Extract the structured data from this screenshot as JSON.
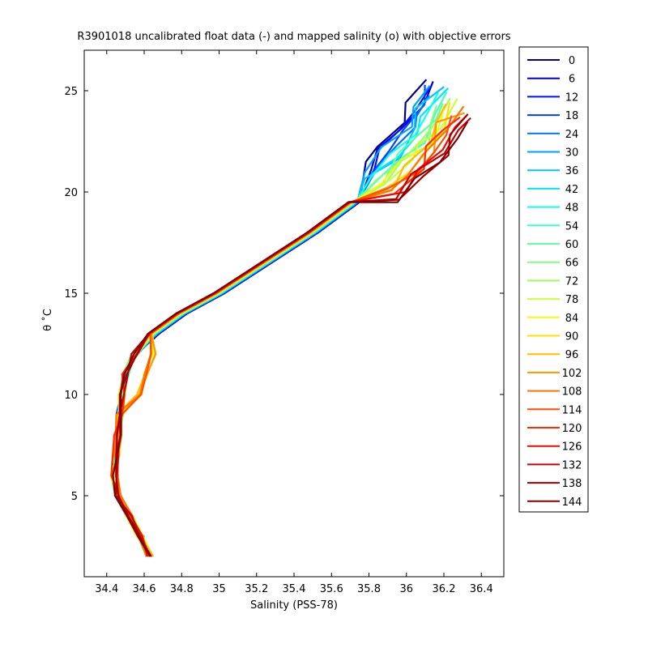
{
  "chart_data": {
    "type": "line",
    "title": "R3901018 uncalibrated float data (-) and mapped salinity (o) with objective errors",
    "xlabel": "Salinity (PSS-78)",
    "ylabel": "θ ˚C",
    "xlim": [
      34.28,
      36.52
    ],
    "ylim": [
      1.0,
      27.0
    ],
    "xticks": [
      "34.4",
      "34.6",
      "34.8",
      "35",
      "35.2",
      "35.4",
      "35.6",
      "35.8",
      "36",
      "36.2",
      "36.4"
    ],
    "xtick_values": [
      34.4,
      34.6,
      34.8,
      35.0,
      35.2,
      35.4,
      35.6,
      35.8,
      36.0,
      36.2,
      36.4
    ],
    "yticks": [
      "5",
      "10",
      "15",
      "20",
      "25"
    ],
    "ytick_values": [
      5,
      10,
      15,
      20,
      25
    ],
    "grid": false,
    "legend_position": "outside-right",
    "colormap": "jet",
    "series": [
      {
        "name": "0",
        "color": "#00008f"
      },
      {
        "name": "6",
        "color": "#0000c8"
      },
      {
        "name": "12",
        "color": "#0010ff"
      },
      {
        "name": "18",
        "color": "#0040ff"
      },
      {
        "name": "24",
        "color": "#0070ff"
      },
      {
        "name": "30",
        "color": "#00a0ff"
      },
      {
        "name": "36",
        "color": "#00c4ff"
      },
      {
        "name": "42",
        "color": "#00e4ff"
      },
      {
        "name": "48",
        "color": "#10ffef"
      },
      {
        "name": "54",
        "color": "#40ffbf"
      },
      {
        "name": "60",
        "color": "#60ffa0"
      },
      {
        "name": "66",
        "color": "#80ff80"
      },
      {
        "name": "72",
        "color": "#a0ff60"
      },
      {
        "name": "78",
        "color": "#c8ff38"
      },
      {
        "name": "84",
        "color": "#f0ff10"
      },
      {
        "name": "90",
        "color": "#ffe000"
      },
      {
        "name": "96",
        "color": "#ffbc00"
      },
      {
        "name": "102",
        "color": "#ff9800"
      },
      {
        "name": "108",
        "color": "#ff7400"
      },
      {
        "name": "114",
        "color": "#ff5000"
      },
      {
        "name": "120",
        "color": "#ff2c00"
      },
      {
        "name": "126",
        "color": "#f00800"
      },
      {
        "name": "132",
        "color": "#c80000"
      },
      {
        "name": "138",
        "color": "#a00000"
      },
      {
        "name": "144",
        "color": "#800000"
      }
    ],
    "profile_shape": [
      [
        34.63,
        2.0
      ],
      [
        34.58,
        3.0
      ],
      [
        34.52,
        4.0
      ],
      [
        34.46,
        5.0
      ],
      [
        34.44,
        6.0
      ],
      [
        34.45,
        7.0
      ],
      [
        34.46,
        8.0
      ],
      [
        34.47,
        9.0
      ],
      [
        34.48,
        10.0
      ],
      [
        34.5,
        11.0
      ],
      [
        34.55,
        12.0
      ],
      [
        34.65,
        13.0
      ],
      [
        34.8,
        14.0
      ],
      [
        35.0,
        15.0
      ],
      [
        35.25,
        16.5
      ],
      [
        35.5,
        18.0
      ],
      [
        35.72,
        19.5
      ],
      [
        35.88,
        20.5
      ],
      [
        35.98,
        21.5
      ],
      [
        36.08,
        22.5
      ],
      [
        36.15,
        23.5
      ],
      [
        36.22,
        24.5
      ]
    ]
  }
}
